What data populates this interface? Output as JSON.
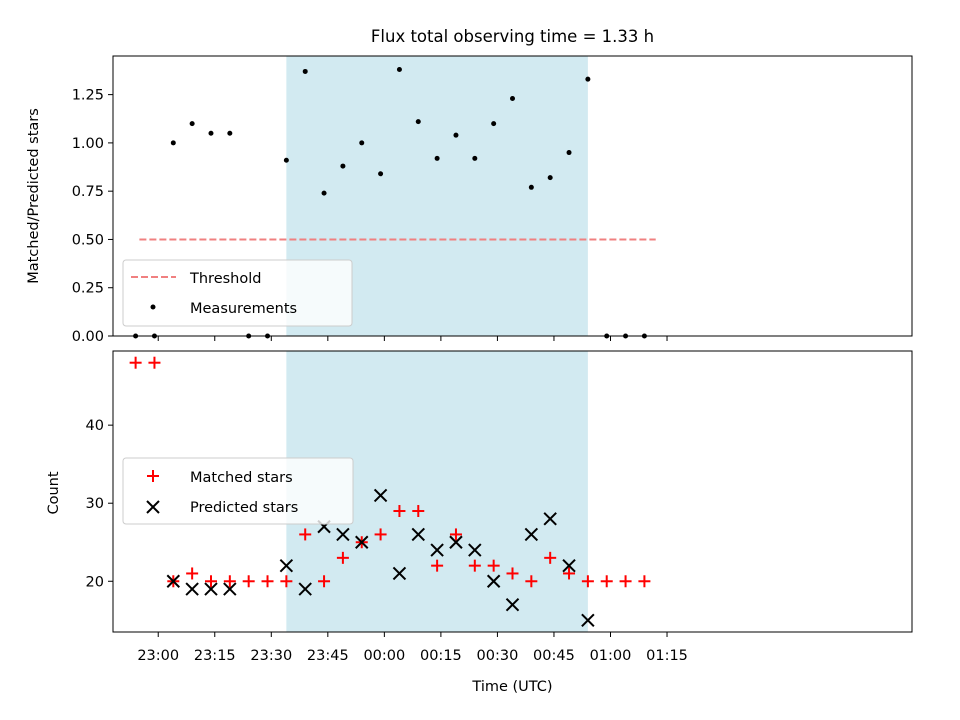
{
  "chart_data": [
    {
      "type": "scatter",
      "title": "Flux total observing time = 1.33 h",
      "ylabel": "Matched/Predicted stars",
      "xlabel": "",
      "x_axis": "time (UTC), shared with lower panel",
      "ylim": [
        0.0,
        1.45
      ],
      "yticks": [
        "0.00",
        "0.25",
        "0.50",
        "0.75",
        "1.00",
        "1.25"
      ],
      "legend_placement": "lower-left",
      "shaded_span": {
        "start": "23:34",
        "end": "00:54",
        "color": "#add8e6"
      },
      "series": [
        {
          "name": "Threshold",
          "style": "dashed-line",
          "color": "#f08080",
          "x": [
            "22:55",
            "01:12"
          ],
          "y": [
            0.5,
            0.5
          ]
        },
        {
          "name": "Measurements",
          "style": "dot",
          "color": "#000000",
          "x": [
            "22:54",
            "22:59",
            "23:04",
            "23:09",
            "23:14",
            "23:19",
            "23:24",
            "23:29",
            "23:34",
            "23:39",
            "23:44",
            "23:49",
            "23:54",
            "23:59",
            "00:04",
            "00:09",
            "00:14",
            "00:19",
            "00:24",
            "00:29",
            "00:34",
            "00:39",
            "00:44",
            "00:49",
            "00:54",
            "00:59",
            "01:04",
            "01:09"
          ],
          "y": [
            0.0,
            0.0,
            1.0,
            1.1,
            1.05,
            1.05,
            0.0,
            0.0,
            0.91,
            1.37,
            0.74,
            0.88,
            1.0,
            0.84,
            1.38,
            1.11,
            0.92,
            1.04,
            0.92,
            1.1,
            1.23,
            0.77,
            0.82,
            0.95,
            1.33,
            0.0,
            0.0,
            0.0
          ]
        }
      ]
    },
    {
      "type": "scatter",
      "title": "",
      "ylabel": "Count",
      "xlabel": "Time (UTC)",
      "ylim": [
        13.5,
        49.5
      ],
      "yticks": [
        "20",
        "30",
        "40"
      ],
      "xticks": [
        "23:00",
        "23:15",
        "23:30",
        "23:45",
        "00:00",
        "00:15",
        "00:30",
        "00:45",
        "01:00",
        "01:15"
      ],
      "legend_placement": "center-left",
      "shaded_span": {
        "start": "23:34",
        "end": "00:54",
        "color": "#add8e6"
      },
      "series": [
        {
          "name": "Matched stars",
          "marker": "plus",
          "color": "#ff0000",
          "x": [
            "22:54",
            "22:59",
            "23:04",
            "23:09",
            "23:14",
            "23:19",
            "23:24",
            "23:29",
            "23:34",
            "23:39",
            "23:44",
            "23:49",
            "23:54",
            "23:59",
            "00:04",
            "00:09",
            "00:14",
            "00:19",
            "00:24",
            "00:29",
            "00:34",
            "00:39",
            "00:44",
            "00:49",
            "00:54",
            "00:59",
            "01:04",
            "01:09"
          ],
          "y": [
            48,
            48,
            20,
            21,
            20,
            20,
            20,
            20,
            20,
            26,
            20,
            23,
            25,
            26,
            29,
            29,
            22,
            26,
            22,
            22,
            21,
            20,
            23,
            21,
            20,
            20,
            20,
            20
          ]
        },
        {
          "name": "Predicted stars",
          "marker": "x",
          "color": "#000000",
          "x": [
            "23:04",
            "23:09",
            "23:14",
            "23:19",
            "23:34",
            "23:39",
            "23:44",
            "23:49",
            "23:54",
            "23:59",
            "00:04",
            "00:09",
            "00:14",
            "00:19",
            "00:24",
            "00:29",
            "00:34",
            "00:39",
            "00:44",
            "00:49",
            "00:54"
          ],
          "y": [
            20,
            19,
            19,
            19,
            22,
            19,
            27,
            26,
            25,
            31,
            21,
            26,
            24,
            25,
            24,
            20,
            17,
            26,
            28,
            22,
            15
          ]
        }
      ]
    }
  ]
}
